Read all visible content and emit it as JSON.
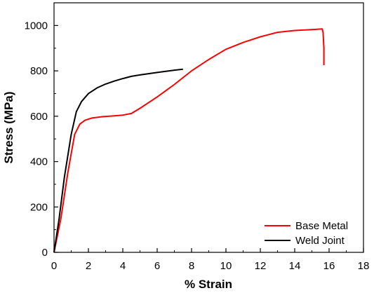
{
  "chart_data": {
    "type": "line",
    "title": "",
    "xlabel": "% Strain",
    "ylabel": "Stress (MPa)",
    "xlim": [
      0,
      18
    ],
    "ylim": [
      0,
      1100
    ],
    "x_ticks": [
      0,
      2,
      4,
      6,
      8,
      10,
      12,
      14,
      16,
      18
    ],
    "y_ticks": [
      0,
      200,
      400,
      600,
      800,
      1000
    ],
    "grid": false,
    "legend_position": "bottom-right",
    "series": [
      {
        "name": "Base Metal",
        "color": "#ff0000",
        "points": [
          [
            0,
            0
          ],
          [
            0.4,
            150
          ],
          [
            0.8,
            350
          ],
          [
            1.2,
            520
          ],
          [
            1.5,
            565
          ],
          [
            1.8,
            582
          ],
          [
            2.2,
            592
          ],
          [
            2.8,
            598
          ],
          [
            3.5,
            602
          ],
          [
            4.0,
            605
          ],
          [
            4.5,
            612
          ],
          [
            5.0,
            635
          ],
          [
            6.0,
            685
          ],
          [
            7.0,
            740
          ],
          [
            8.0,
            800
          ],
          [
            9.0,
            850
          ],
          [
            10.0,
            895
          ],
          [
            11.0,
            925
          ],
          [
            12.0,
            950
          ],
          [
            13.0,
            970
          ],
          [
            14.0,
            978
          ],
          [
            15.0,
            982
          ],
          [
            15.6,
            985
          ],
          [
            15.65,
            970
          ],
          [
            15.7,
            900
          ],
          [
            15.7,
            825
          ]
        ]
      },
      {
        "name": "Weld Joint",
        "color": "#000000",
        "points": [
          [
            0,
            0
          ],
          [
            0.3,
            150
          ],
          [
            0.6,
            330
          ],
          [
            1.0,
            520
          ],
          [
            1.3,
            620
          ],
          [
            1.6,
            665
          ],
          [
            2.0,
            700
          ],
          [
            2.5,
            725
          ],
          [
            3.0,
            742
          ],
          [
            3.5,
            755
          ],
          [
            4.0,
            766
          ],
          [
            4.5,
            776
          ],
          [
            5.0,
            782
          ],
          [
            6.0,
            793
          ],
          [
            7.0,
            803
          ],
          [
            7.5,
            807
          ]
        ]
      }
    ]
  }
}
